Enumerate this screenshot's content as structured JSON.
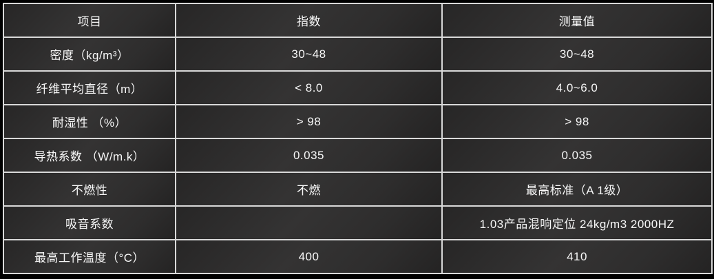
{
  "table": {
    "headers": [
      "项目",
      "指数",
      "测量值"
    ],
    "rows": [
      {
        "item": "密度（kg/m³）",
        "index": "30~48",
        "measured": "30~48"
      },
      {
        "item": "纤维平均直径（m）",
        "index": "< 8.0",
        "measured": "4.0~6.0"
      },
      {
        "item": "耐湿性 （%）",
        "index": "> 98",
        "measured": "> 98"
      },
      {
        "item": "导热系数 （W/m.k）",
        "index": "0.035",
        "measured": "0.035"
      },
      {
        "item": "不燃性",
        "index": "不燃",
        "measured": "最高标准（A 1级）"
      },
      {
        "item": "吸音系数",
        "index": "",
        "measured": "1.03产品混响定位 24kg/m3 2000HZ"
      },
      {
        "item": "最高工作温度（°C）",
        "index": "400",
        "measured": "410"
      }
    ]
  },
  "colors": {
    "page_background": "#000000",
    "cell_background": "#2e2d2d",
    "grid_border": "#d9d9d9",
    "text": "#f7f7f7"
  }
}
